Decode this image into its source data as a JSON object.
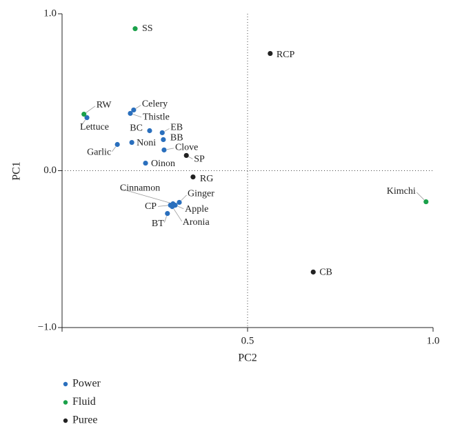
{
  "chart_data": {
    "type": "scatter",
    "x_label": "PC2",
    "y_label": "PC1",
    "xlim": [
      0,
      1
    ],
    "ylim": [
      -1,
      1
    ],
    "xticks": [
      0.5,
      {
        "value": 1,
        "label": "1.0"
      }
    ],
    "yticks": [
      {
        "value": -1,
        "label": "−1.0"
      },
      {
        "value": 0,
        "label": "0.0"
      },
      {
        "value": 1,
        "label": "1.0"
      }
    ],
    "reference_lines": {
      "x": 0.5,
      "y": 0
    },
    "series": [
      {
        "name": "Power",
        "color": "#2a6fbd",
        "labels": [
          "Lettuce",
          "Celery",
          "Thistle",
          "BC",
          "EB",
          "BB",
          "Noni",
          "Garlic",
          "Clove",
          "Oinon",
          "Ginger",
          "Cinnamon",
          "CP",
          "Apple",
          "Aronia",
          "BT"
        ],
        "x": [
          0.067,
          0.193,
          0.184,
          0.236,
          0.27,
          0.273,
          0.188,
          0.149,
          0.275,
          0.225,
          0.316,
          0.299,
          0.292,
          0.305,
          0.297,
          0.284
        ],
        "y": [
          0.338,
          0.387,
          0.365,
          0.255,
          0.242,
          0.198,
          0.18,
          0.167,
          0.132,
          0.048,
          -0.202,
          -0.211,
          -0.22,
          -0.22,
          -0.229,
          -0.273
        ]
      },
      {
        "name": "Fluid",
        "color": "#1aa14a",
        "labels": [
          "SS",
          "RW",
          "Kimchi"
        ],
        "x": [
          0.197,
          0.059,
          0.981
        ],
        "y": [
          0.905,
          0.36,
          -0.198
        ]
      },
      {
        "name": "Puree",
        "color": "#222222",
        "labels": [
          "RCP",
          "SP",
          "RG",
          "CB"
        ],
        "x": [
          0.561,
          0.335,
          0.353,
          0.677
        ],
        "y": [
          0.747,
          0.097,
          -0.04,
          -0.646
        ]
      }
    ]
  }
}
